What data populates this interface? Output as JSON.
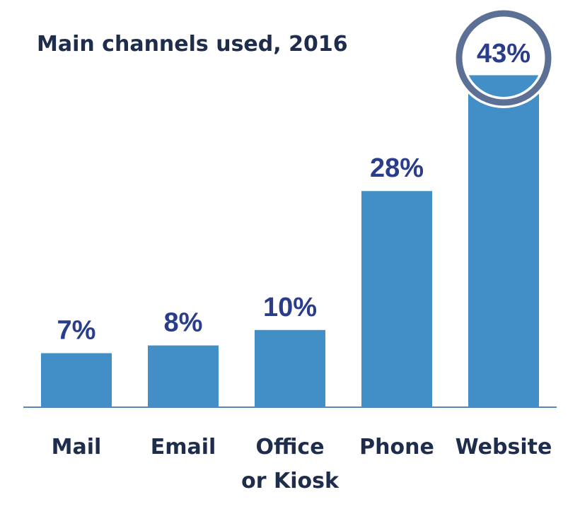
{
  "chart_data": {
    "type": "bar",
    "title": "Main channels used, 2016",
    "xlabel": "",
    "ylabel": "",
    "categories": [
      [
        "Mail"
      ],
      [
        "Email"
      ],
      [
        "Office",
        "or Kiosk"
      ],
      [
        "Phone"
      ],
      [
        "Website"
      ]
    ],
    "values": [
      7,
      8,
      10,
      28,
      43
    ],
    "data_labels": [
      "7%",
      "8%",
      "10%",
      "28%",
      "43%"
    ],
    "unit": "%",
    "ylim": [
      0,
      45
    ],
    "grid": false,
    "legend": "none",
    "highlight_index": 4,
    "colors": {
      "bar": "#418fc6",
      "axis": "#5b86b8",
      "highlight_ring": "#5c6f94",
      "title": "#1f2d4d",
      "value_label": "#2a3c8c",
      "category_label": "#1f2d4d"
    }
  }
}
